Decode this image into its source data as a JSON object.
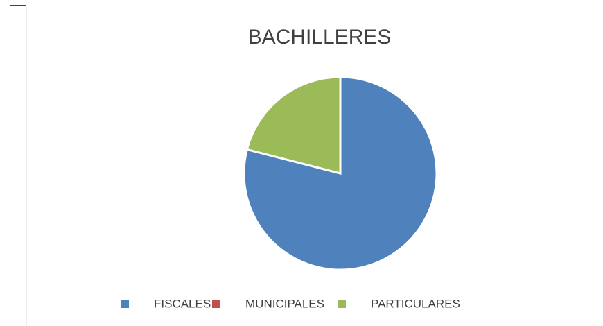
{
  "chart_data": {
    "type": "pie",
    "title": "BACHILLERES",
    "categories": [
      "FISCALES",
      "MUNICIPALES",
      "PARTICULARES"
    ],
    "values": [
      79,
      0,
      21
    ],
    "colors": [
      "#4f81bd",
      "#c0504d",
      "#9bbb59"
    ]
  }
}
